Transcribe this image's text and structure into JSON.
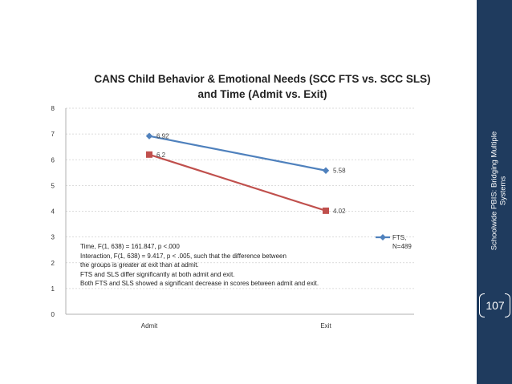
{
  "chart_data": {
    "type": "line",
    "title": "CANS Child Behavior & Emotional Needs (SCC FTS vs. SCC SLS) and Time (Admit vs. Exit)",
    "title_lines": [
      "CANS Child Behavior & Emotional Needs (SCC FTS vs. SCC SLS)",
      "and Time (Admit vs. Exit)"
    ],
    "categories": [
      "Admit",
      "Exit"
    ],
    "ylim": [
      0,
      8
    ],
    "yticks": [
      "0",
      "1",
      "2",
      "3",
      "4",
      "5",
      "6",
      "7",
      "8"
    ],
    "grid": true,
    "legend_position": "right",
    "series": [
      {
        "name": "FTS, N=489",
        "legend_lines": [
          "FTS,",
          "N=489"
        ],
        "values": [
          6.92,
          5.58
        ],
        "labels": [
          "6.92",
          "5.58"
        ],
        "color": "#4f81bd",
        "marker": "diamond"
      },
      {
        "values": [
          6.2,
          4.02
        ],
        "labels": [
          "6.2",
          "4.02"
        ],
        "color": "#c0504d",
        "marker": "square"
      }
    ],
    "annotation_lines": [
      "Time, F(1, 638) = 161.847, p <.000",
      "Interaction, F(1, 638) = 9.417, p < .005, such that the difference between",
      "the groups is greater at exit than at admit.",
      "FTS and SLS differ significantly at both admit and exit.",
      "Both FTS and SLS showed a significant decrease in scores between admit and exit."
    ]
  },
  "sidebar": {
    "text_lines": [
      "Schoolwide PBIS: Bridging Multiple",
      "Systems"
    ],
    "page_number": "107",
    "bg_color": "#1f3b5e"
  }
}
